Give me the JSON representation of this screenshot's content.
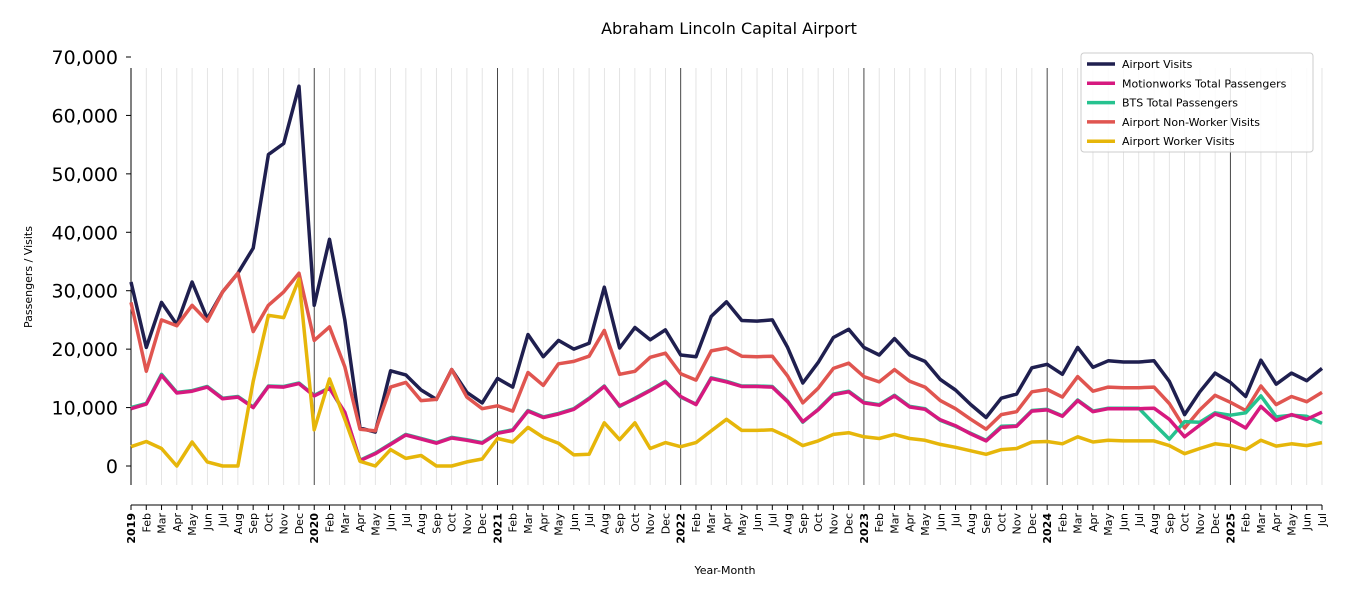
{
  "chart_data": {
    "type": "line",
    "title": "Abraham Lincoln Capital Airport",
    "xlabel": "Year-Month",
    "ylabel": "Passengers / Visits",
    "ylim": [
      -3000,
      68000
    ],
    "yticks": [
      0,
      10000,
      20000,
      30000,
      40000,
      50000,
      60000,
      70000
    ],
    "ytick_labels": [
      "0",
      "10,000",
      "20,000",
      "30,000",
      "40,000",
      "50,000",
      "60,000",
      "70,000"
    ],
    "x_start": "2019-01",
    "x_end": "2025-07",
    "month_labels": [
      "Feb",
      "Mar",
      "Apr",
      "May",
      "Jun",
      "Jul",
      "Aug",
      "Sep",
      "Oct",
      "Nov",
      "Dec"
    ],
    "year_labels": [
      "2019",
      "2020",
      "2021",
      "2022",
      "2023",
      "2024",
      "2025"
    ],
    "grid": "vertical monthly, darker at year boundaries",
    "legend_placement": "top-right",
    "series": [
      {
        "name": "Airport Visits",
        "color": "#1f1f4f",
        "values": [
          31500,
          20300,
          28000,
          24200,
          31500,
          25200,
          29800,
          33000,
          37300,
          53300,
          55200,
          65000,
          27500,
          38800,
          25000,
          6500,
          5800,
          16300,
          15600,
          13000,
          11400,
          16500,
          12600,
          10800,
          15000,
          13500,
          22500,
          18700,
          21500,
          20000,
          21000,
          30600,
          20200,
          23700,
          21600,
          23300,
          19000,
          18700,
          25600,
          28100,
          24900,
          24800,
          25000,
          20300,
          14200,
          17700,
          22000,
          23400,
          20300,
          19000,
          21800,
          19000,
          17900,
          14800,
          13000,
          10500,
          8300,
          11600,
          12300,
          16800,
          17400,
          15700,
          20300,
          16900,
          18000,
          17800,
          17800,
          18000,
          14500,
          8800,
          12700,
          15900,
          14300,
          11900,
          18100,
          14000,
          15900,
          14600,
          16700
        ]
      },
      {
        "name": "Motionworks Total Passengers",
        "color": "#d6197f",
        "values": [
          9800,
          10600,
          15500,
          12500,
          12800,
          13500,
          11500,
          11800,
          10000,
          13600,
          13500,
          14100,
          12000,
          13300,
          9200,
          900,
          2100,
          3700,
          5300,
          4600,
          3900,
          4800,
          4400,
          3900,
          5600,
          6100,
          9400,
          8300,
          8900,
          9700,
          11500,
          13600,
          10300,
          11500,
          12900,
          14400,
          11900,
          10500,
          15000,
          14400,
          13600,
          13600,
          13500,
          11000,
          7600,
          9600,
          12200,
          12700,
          10800,
          10400,
          12000,
          10100,
          9700,
          7900,
          6900,
          5500,
          4300,
          6600,
          6800,
          9400,
          9600,
          8500,
          11200,
          9300,
          9800,
          9800,
          9800,
          9900,
          8000,
          5000,
          7000,
          8900,
          8000,
          6500,
          10200,
          7800,
          8800,
          8000,
          9200
        ]
      },
      {
        "name": "BTS Total Passengers",
        "color": "#26c28f",
        "values": [
          10000,
          10700,
          15700,
          12600,
          12900,
          13600,
          11600,
          11900,
          10100,
          13700,
          13600,
          14200,
          12100,
          13400,
          9000,
          1000,
          2200,
          3800,
          5400,
          4700,
          4000,
          4900,
          4500,
          4000,
          5700,
          6200,
          9500,
          8400,
          9000,
          9800,
          11600,
          13700,
          10200,
          11600,
          13000,
          14500,
          11800,
          10600,
          15100,
          14500,
          13700,
          13700,
          13600,
          11100,
          7500,
          9700,
          12300,
          12800,
          10900,
          10500,
          12100,
          10200,
          9800,
          7800,
          6800,
          5600,
          4400,
          6800,
          6900,
          9500,
          9700,
          8600,
          11300,
          9400,
          9900,
          9900,
          9900,
          7200,
          4600,
          7600,
          7500,
          9100,
          8700,
          9100,
          12000,
          8400,
          8700,
          8500,
          7300
        ]
      },
      {
        "name": "Airport Non-Worker Visits",
        "color": "#e05550",
        "values": [
          28000,
          16200,
          25000,
          24000,
          27500,
          24800,
          29800,
          33000,
          23000,
          27500,
          29800,
          33000,
          21500,
          23800,
          17000,
          6300,
          6000,
          13500,
          14300,
          11200,
          11400,
          16500,
          11800,
          9800,
          10300,
          9400,
          16000,
          13800,
          17500,
          17900,
          18800,
          23200,
          15700,
          16200,
          18600,
          19300,
          15800,
          14700,
          19700,
          20200,
          18800,
          18700,
          18800,
          15400,
          10800,
          13300,
          16700,
          17600,
          15300,
          14400,
          16500,
          14500,
          13500,
          11200,
          9800,
          8000,
          6300,
          8800,
          9300,
          12700,
          13100,
          11800,
          15300,
          12800,
          13500,
          13400,
          13400,
          13500,
          10700,
          6500,
          9600,
          12100,
          10900,
          9500,
          13700,
          10500,
          11900,
          11000,
          12600
        ]
      },
      {
        "name": "Airport Worker Visits",
        "color": "#e6b60a",
        "values": [
          3300,
          4200,
          3000,
          0,
          4100,
          700,
          0,
          0,
          14500,
          25800,
          25400,
          32000,
          6200,
          14900,
          8000,
          800,
          0,
          2800,
          1300,
          1800,
          0,
          0,
          700,
          1200,
          4700,
          4100,
          6600,
          4900,
          3900,
          1900,
          2000,
          7400,
          4500,
          7400,
          3000,
          4000,
          3300,
          4000,
          6000,
          8000,
          6100,
          6100,
          6200,
          5000,
          3500,
          4300,
          5400,
          5700,
          5000,
          4700,
          5400,
          4700,
          4400,
          3700,
          3200,
          2600,
          2000,
          2800,
          3000,
          4100,
          4200,
          3800,
          5000,
          4100,
          4400,
          4300,
          4300,
          4300,
          3500,
          2100,
          3000,
          3800,
          3500,
          2800,
          4400,
          3400,
          3800,
          3500,
          4000
        ]
      }
    ]
  }
}
